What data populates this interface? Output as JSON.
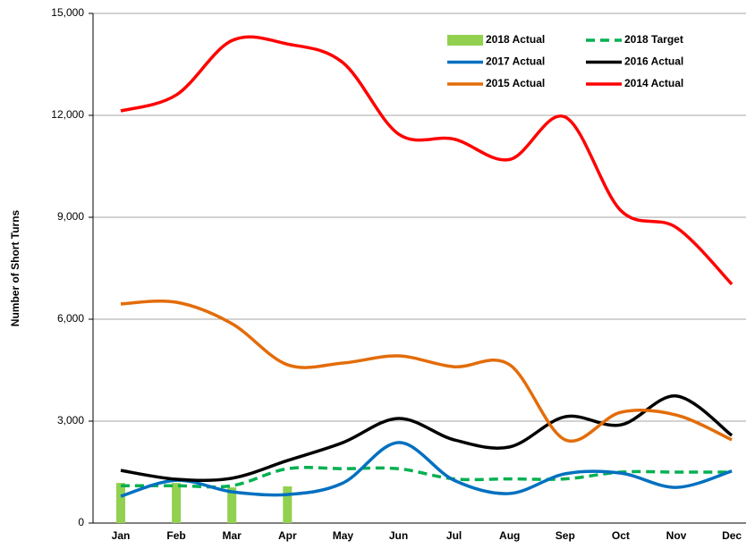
{
  "chart_data": {
    "type": "line",
    "y_label": "Number of Short Turns",
    "categories": [
      "Jan",
      "Feb",
      "Mar",
      "Apr",
      "May",
      "Jun",
      "Jul",
      "Aug",
      "Sep",
      "Oct",
      "Nov",
      "Dec"
    ],
    "ylim": [
      0,
      15000
    ],
    "yticks": [
      0,
      {
        "value": 3000,
        "label": "3,000"
      },
      {
        "value": 6000,
        "label": "6,000"
      },
      {
        "value": 9000,
        "label": "9,000"
      },
      {
        "value": 12000,
        "label": "12,000"
      },
      {
        "value": 15000,
        "label": "15,000"
      }
    ],
    "grid": true,
    "series": [
      {
        "name": "2018 Actual",
        "type": "bar",
        "color": "#92d050",
        "values": [
          1180,
          1180,
          1050,
          1080,
          null,
          null,
          null,
          null,
          null,
          null,
          null,
          null
        ]
      },
      {
        "name": "2018 Target",
        "type": "line",
        "dash": true,
        "color": "#00b050",
        "values": [
          1100,
          1100,
          1100,
          1600,
          1600,
          1600,
          1300,
          1300,
          1300,
          1500,
          1500,
          1500
        ]
      },
      {
        "name": "2017 Actual",
        "type": "line",
        "color": "#0070c0",
        "values": [
          790,
          1260,
          920,
          840,
          1180,
          2370,
          1260,
          870,
          1450,
          1470,
          1050,
          1530
        ]
      },
      {
        "name": "2016 Actual",
        "type": "line",
        "color": "#000000",
        "values": [
          1550,
          1290,
          1320,
          1840,
          2370,
          3080,
          2450,
          2240,
          3130,
          2890,
          3740,
          2580
        ]
      },
      {
        "name": "2015 Actual",
        "type": "line",
        "color": "#e36c09",
        "values": [
          6450,
          6500,
          5870,
          4660,
          4710,
          4920,
          4600,
          4660,
          2450,
          3260,
          3180,
          2450
        ]
      },
      {
        "name": "2014 Actual",
        "type": "line",
        "color": "#ff0000",
        "values": [
          12130,
          12600,
          14200,
          14100,
          13550,
          11450,
          11300,
          10700,
          11950,
          9200,
          8700,
          7030
        ]
      }
    ]
  }
}
